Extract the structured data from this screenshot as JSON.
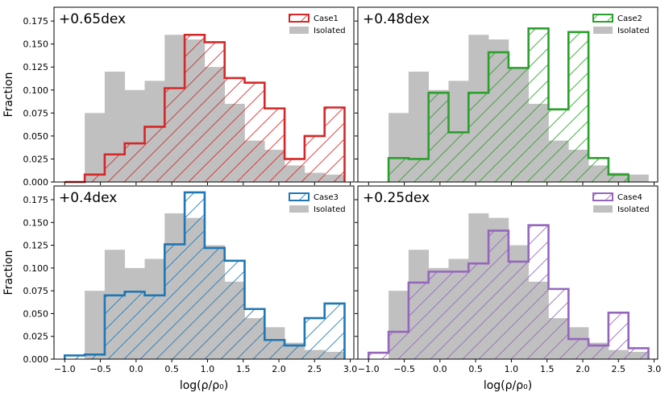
{
  "chart_data": {
    "type": "bar",
    "y_axis_label": "Fraction",
    "x_axis_label": "log(ρ/ρ₀)",
    "xlim": [
      -1.15,
      3.05
    ],
    "ylim": [
      0,
      0.19
    ],
    "x_ticks": [
      -1.0,
      -0.5,
      0.0,
      0.5,
      1.0,
      1.5,
      2.0,
      2.5,
      3.0
    ],
    "x_tick_labels": [
      "−1.0",
      "−0.5",
      "0.0",
      "0.5",
      "1.0",
      "1.5",
      "2.0",
      "2.5",
      "3.0"
    ],
    "y_ticks": [
      0,
      0.025,
      0.05,
      0.075,
      0.1,
      0.125,
      0.15,
      0.175
    ],
    "y_tick_labels": [
      "0.000",
      "0.025",
      "0.050",
      "0.075",
      "0.100",
      "0.125",
      "0.150",
      "0.175"
    ],
    "isolated": {
      "name": "Isolated",
      "color": "#c0c0c0",
      "bin_edges": [
        -0.72,
        -0.44,
        -0.16,
        0.12,
        0.4,
        0.68,
        0.96,
        1.24,
        1.52,
        1.8,
        2.08,
        2.36,
        2.64,
        2.92
      ],
      "values": [
        0.075,
        0.12,
        0.1,
        0.11,
        0.16,
        0.155,
        0.125,
        0.085,
        0.045,
        0.035,
        0.018,
        0.01,
        0.008
      ]
    },
    "panels": [
      {
        "title": "+0.65dex",
        "legend": [
          "Case1",
          "Isolated"
        ],
        "case_color": "#d62728",
        "bin_edges": [
          -1.0,
          -0.72,
          -0.44,
          -0.16,
          0.12,
          0.4,
          0.68,
          0.96,
          1.24,
          1.52,
          1.8,
          2.08,
          2.36,
          2.64,
          2.92
        ],
        "values": [
          0.0,
          0.008,
          0.03,
          0.042,
          0.06,
          0.102,
          0.16,
          0.152,
          0.113,
          0.108,
          0.08,
          0.025,
          0.05,
          0.081
        ]
      },
      {
        "title": "+0.48dex",
        "legend": [
          "Case2",
          "Isolated"
        ],
        "case_color": "#2ca02c",
        "bin_edges": [
          -0.72,
          -0.44,
          -0.16,
          0.12,
          0.4,
          0.68,
          0.96,
          1.24,
          1.52,
          1.8,
          2.08,
          2.36,
          2.64
        ],
        "values": [
          0.026,
          0.025,
          0.097,
          0.054,
          0.097,
          0.141,
          0.124,
          0.167,
          0.079,
          0.163,
          0.026,
          0.008
        ]
      },
      {
        "title": "+0.4dex",
        "legend": [
          "Case3",
          "Isolated"
        ],
        "case_color": "#1f77b4",
        "bin_edges": [
          -1.0,
          -0.72,
          -0.44,
          -0.16,
          0.12,
          0.4,
          0.68,
          0.96,
          1.24,
          1.52,
          1.8,
          2.08,
          2.36,
          2.64,
          2.92
        ],
        "values": [
          0.004,
          0.005,
          0.07,
          0.074,
          0.07,
          0.126,
          0.183,
          0.122,
          0.108,
          0.055,
          0.021,
          0.015,
          0.045,
          0.061
        ]
      },
      {
        "title": "+0.25dex",
        "legend": [
          "Case4",
          "Isolated"
        ],
        "case_color": "#9467bd",
        "bin_edges": [
          -1.0,
          -0.72,
          -0.44,
          -0.16,
          0.12,
          0.4,
          0.68,
          0.96,
          1.24,
          1.52,
          1.8,
          2.08,
          2.36,
          2.64,
          2.92
        ],
        "values": [
          0.007,
          0.03,
          0.084,
          0.096,
          0.096,
          0.105,
          0.141,
          0.107,
          0.147,
          0.077,
          0.022,
          0.015,
          0.051,
          0.012
        ]
      }
    ]
  }
}
